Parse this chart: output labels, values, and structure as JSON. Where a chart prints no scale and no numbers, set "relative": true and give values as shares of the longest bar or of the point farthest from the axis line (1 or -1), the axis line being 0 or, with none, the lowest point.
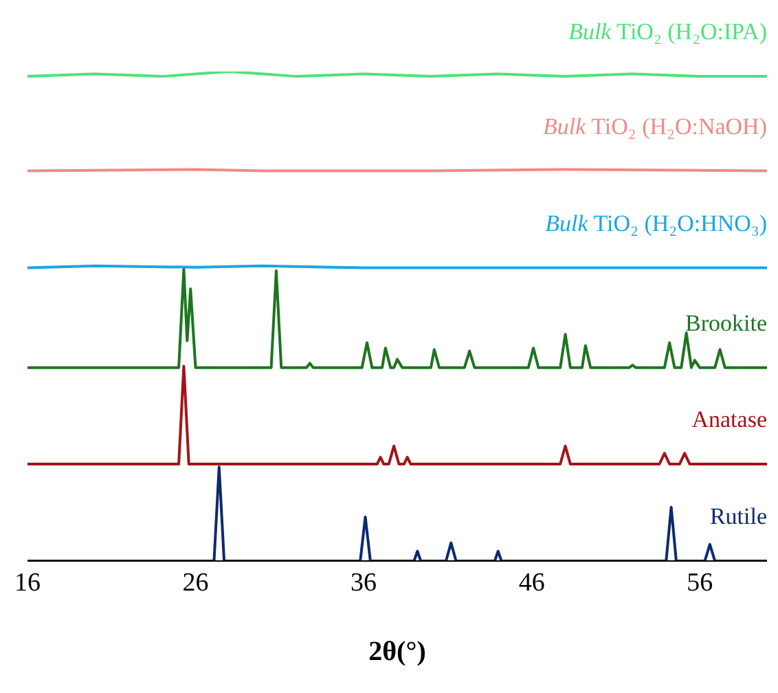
{
  "chart_data": {
    "type": "line",
    "relative": true,
    "xlabel": "2θ(°)",
    "xlim": [
      16,
      60
    ],
    "xticks": [
      16,
      26,
      36,
      46,
      56
    ],
    "marker": "none",
    "line_style": "solid",
    "series": [
      {
        "name": "Bulk TiO₂ (H₂O:IPA)",
        "color": "#4fe27c",
        "x": [
          16,
          20,
          24,
          28,
          30,
          32,
          36,
          40,
          44,
          48,
          52,
          56,
          60
        ],
        "values": [
          0.99,
          0.995,
          0.99,
          1,
          0.995,
          0.99,
          0.995,
          0.99,
          0.995,
          0.99,
          0.995,
          0.99,
          0.99
        ]
      },
      {
        "name": "Bulk TiO₂ (H₂O:NaOH)",
        "color": "#f08a8a",
        "x": [
          16,
          26,
          30,
          40,
          48,
          60
        ],
        "values": [
          0.797,
          0.8,
          0.797,
          0.797,
          0.8,
          0.797
        ]
      },
      {
        "name": "Bulk TiO₂ (H₂O:HNO₃)",
        "color": "#1ba6e0",
        "x": [
          16,
          20,
          26,
          30,
          36,
          60
        ],
        "values": [
          0.599,
          0.603,
          0.6,
          0.603,
          0.599,
          0.599
        ]
      },
      {
        "name": "Brookite",
        "color": "#1e7420",
        "x": [
          16,
          25.0,
          25.3,
          25.5,
          25.7,
          26.0,
          30.5,
          30.8,
          31.1,
          32.6,
          32.8,
          33.0,
          35.9,
          36.2,
          36.5,
          37.1,
          37.3,
          37.6,
          37.8,
          38.0,
          38.3,
          40.0,
          40.2,
          40.5,
          42.0,
          42.3,
          42.6,
          45.8,
          46.1,
          46.4,
          47.7,
          48.0,
          48.3,
          49.0,
          49.2,
          49.5,
          51.8,
          52.0,
          52.2,
          53.9,
          54.2,
          54.5,
          54.9,
          55.2,
          55.5,
          55.7,
          56.0,
          56.9,
          57.2,
          57.5,
          60
        ],
        "values": [
          0.395,
          0.395,
          0.596,
          0.45,
          0.556,
          0.395,
          0.395,
          0.593,
          0.395,
          0.395,
          0.404,
          0.395,
          0.395,
          0.446,
          0.395,
          0.395,
          0.435,
          0.395,
          0.395,
          0.412,
          0.395,
          0.395,
          0.432,
          0.395,
          0.395,
          0.429,
          0.395,
          0.395,
          0.435,
          0.395,
          0.395,
          0.463,
          0.395,
          0.395,
          0.44,
          0.395,
          0.395,
          0.4,
          0.395,
          0.395,
          0.446,
          0.395,
          0.395,
          0.466,
          0.395,
          0.41,
          0.395,
          0.395,
          0.432,
          0.395,
          0.395
        ]
      },
      {
        "name": "Anatase",
        "color": "#a3141a",
        "x": [
          16,
          25.0,
          25.3,
          25.6,
          36.8,
          37.0,
          37.2,
          37.5,
          37.8,
          38.1,
          38.4,
          38.6,
          38.8,
          47.7,
          48.0,
          48.3,
          53.6,
          53.9,
          54.2,
          54.8,
          55.1,
          55.4,
          60
        ],
        "values": [
          0.198,
          0.198,
          0.398,
          0.198,
          0.198,
          0.212,
          0.198,
          0.198,
          0.235,
          0.198,
          0.198,
          0.212,
          0.198,
          0.198,
          0.235,
          0.198,
          0.198,
          0.22,
          0.198,
          0.198,
          0.22,
          0.198,
          0.198
        ]
      },
      {
        "name": "Rutile",
        "color": "#0c2b6e",
        "x": [
          16,
          27.1,
          27.4,
          27.7,
          35.8,
          36.1,
          36.4,
          39.0,
          39.2,
          39.4,
          40.9,
          41.2,
          41.5,
          43.8,
          44.0,
          44.2,
          54.0,
          54.3,
          54.6,
          56.3,
          56.6,
          56.9,
          60
        ],
        "values": [
          0,
          0,
          0.192,
          0,
          0,
          0.09,
          0,
          0,
          0.02,
          0,
          0,
          0.037,
          0,
          0,
          0.02,
          0,
          0,
          0.11,
          0,
          0,
          0.034,
          0,
          0
        ]
      }
    ]
  }
}
